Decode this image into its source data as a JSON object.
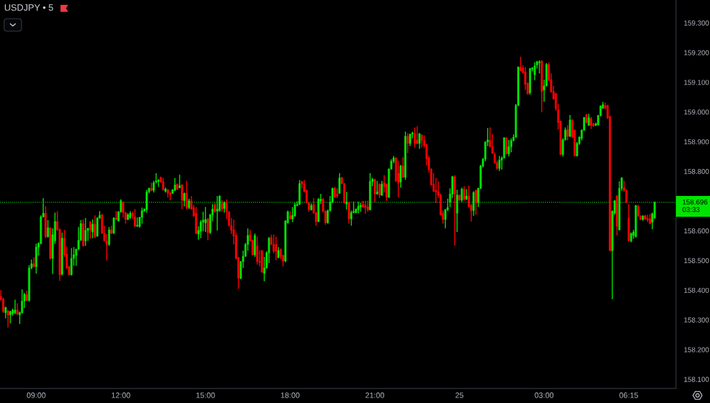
{
  "chart_data": {
    "type": "candlestick",
    "title": "USDJPY • 5",
    "categories": [
      null,
      null,
      null,
      null,
      null,
      null,
      null,
      null,
      null,
      null,
      null,
      null,
      null,
      null,
      null,
      "09:00",
      null,
      null,
      null,
      null,
      null,
      null,
      null,
      null,
      null,
      null,
      null,
      null,
      null,
      null,
      null,
      null,
      null,
      null,
      null,
      null,
      null,
      null,
      null,
      null,
      null,
      null,
      null,
      null,
      null,
      null,
      null,
      null,
      null,
      null,
      null,
      "12:00",
      null,
      null,
      null,
      null,
      null,
      null,
      null,
      null,
      null,
      null,
      null,
      null,
      null,
      null,
      null,
      null,
      null,
      null,
      null,
      null,
      null,
      null,
      null,
      null,
      null,
      null,
      null,
      null,
      null,
      null,
      null,
      null,
      null,
      null,
      null,
      "15:00",
      null,
      null,
      null,
      null,
      null,
      null,
      null,
      null,
      null,
      null,
      null,
      null,
      null,
      null,
      null,
      null,
      null,
      null,
      null,
      null,
      null,
      null,
      null,
      null,
      null,
      null,
      null,
      null,
      null,
      null,
      null,
      null,
      null,
      null,
      null,
      "18:00",
      null,
      null,
      null,
      null,
      null,
      null,
      null,
      null,
      null,
      null,
      null,
      null,
      null,
      null,
      null,
      null,
      null,
      null,
      null,
      null,
      null,
      null,
      null,
      null,
      null,
      null,
      null,
      null,
      null,
      null,
      null,
      null,
      null,
      null,
      null,
      "21:00",
      null,
      null,
      null,
      null,
      null,
      null,
      null,
      null,
      null,
      null,
      null,
      null,
      null,
      null,
      null,
      null,
      null,
      null,
      null,
      null,
      null,
      null,
      null,
      null,
      null,
      null,
      null,
      null,
      null,
      null,
      null,
      null,
      null,
      null,
      null,
      "25",
      null,
      null,
      null,
      null,
      null,
      null,
      null,
      null,
      null,
      null,
      null,
      null,
      null,
      null,
      null,
      null,
      null,
      null,
      null,
      null,
      null,
      null,
      null,
      null,
      null,
      null,
      null,
      null,
      null,
      null,
      null,
      null,
      null,
      null,
      null,
      "03:00",
      null,
      null,
      null,
      null,
      null,
      null,
      null,
      null,
      null,
      null,
      null,
      null,
      null,
      null,
      null,
      null,
      null,
      null,
      null,
      null,
      null,
      null,
      null,
      null,
      null,
      null,
      null,
      null,
      null,
      null,
      null,
      null,
      null,
      null,
      null,
      "06:15",
      null,
      null,
      null,
      null,
      null,
      null,
      null,
      null,
      null,
      null,
      null
    ],
    "ohlc": [
      [
        158.379,
        158.4,
        158.365,
        158.368
      ],
      [
        158.37,
        158.375,
        158.323,
        158.328
      ],
      [
        158.324,
        158.344,
        158.305,
        158.342
      ],
      [
        158.33,
        158.333,
        158.274,
        158.316
      ],
      [
        158.317,
        158.33,
        158.288,
        158.328
      ],
      [
        158.321,
        158.338,
        158.314,
        158.333
      ],
      [
        158.324,
        158.368,
        158.319,
        158.333
      ],
      [
        158.333,
        158.356,
        158.317,
        158.319
      ],
      [
        158.317,
        158.328,
        158.286,
        158.324
      ],
      [
        158.324,
        158.403,
        158.321,
        158.363
      ],
      [
        158.363,
        158.391,
        158.34,
        158.386
      ],
      [
        158.384,
        158.398,
        158.363,
        158.365
      ],
      [
        158.365,
        158.484,
        158.361,
        158.475
      ],
      [
        158.475,
        158.503,
        158.47,
        158.489
      ],
      [
        158.489,
        158.51,
        158.477,
        158.479
      ],
      [
        158.479,
        158.557,
        158.456,
        158.545
      ],
      [
        158.545,
        158.561,
        158.517,
        158.557
      ],
      [
        158.557,
        158.652,
        158.554,
        158.647
      ],
      [
        158.647,
        158.71,
        158.645,
        158.659
      ],
      [
        158.659,
        158.682,
        158.575,
        158.58
      ],
      [
        158.58,
        158.636,
        158.577,
        158.61
      ],
      [
        158.61,
        158.612,
        158.503,
        158.507
      ],
      [
        158.507,
        158.608,
        158.454,
        158.587
      ],
      [
        158.566,
        158.661,
        158.556,
        158.631
      ],
      [
        158.631,
        158.666,
        158.6,
        158.603
      ],
      [
        158.605,
        158.608,
        158.431,
        158.452
      ],
      [
        158.454,
        158.594,
        158.449,
        158.575
      ],
      [
        158.575,
        158.603,
        158.512,
        158.519
      ],
      [
        158.521,
        158.547,
        158.472,
        158.475
      ],
      [
        158.479,
        158.482,
        158.449,
        158.452
      ],
      [
        158.452,
        158.542,
        158.449,
        158.507
      ],
      [
        158.507,
        158.545,
        158.482,
        158.519
      ],
      [
        158.517,
        158.54,
        158.482,
        158.538
      ],
      [
        158.538,
        158.613,
        158.535,
        158.568
      ],
      [
        158.568,
        158.636,
        158.566,
        158.624
      ],
      [
        158.624,
        158.638,
        158.547,
        158.549
      ],
      [
        158.566,
        158.643,
        158.549,
        158.601
      ],
      [
        158.601,
        158.61,
        158.566,
        158.608
      ],
      [
        158.629,
        158.633,
        158.573,
        158.603
      ],
      [
        158.596,
        158.638,
        158.575,
        158.622
      ],
      [
        158.622,
        158.652,
        158.575,
        158.58
      ],
      [
        158.582,
        158.645,
        158.58,
        158.643
      ],
      [
        158.643,
        158.666,
        158.64,
        158.652
      ],
      [
        158.654,
        158.656,
        158.589,
        158.592
      ],
      [
        158.592,
        158.617,
        158.564,
        158.566
      ],
      [
        158.566,
        158.589,
        158.5,
        158.554
      ],
      [
        158.554,
        158.613,
        158.549,
        158.603
      ],
      [
        158.603,
        158.617,
        158.589,
        158.592
      ],
      [
        158.592,
        158.645,
        158.589,
        158.643
      ],
      [
        158.643,
        158.666,
        158.636,
        158.638
      ],
      [
        158.633,
        158.666,
        158.631,
        158.664
      ],
      [
        158.664,
        158.706,
        158.661,
        158.701
      ],
      [
        158.696,
        158.698,
        158.645,
        158.661
      ],
      [
        158.661,
        158.664,
        158.624,
        158.638
      ],
      [
        158.638,
        158.659,
        158.636,
        158.654
      ],
      [
        158.645,
        158.666,
        158.64,
        158.659
      ],
      [
        158.659,
        158.664,
        158.64,
        158.65
      ],
      [
        158.647,
        158.673,
        158.613,
        158.615
      ],
      [
        158.615,
        158.645,
        158.613,
        158.619
      ],
      [
        158.615,
        158.647,
        158.61,
        158.645
      ],
      [
        158.645,
        158.678,
        158.624,
        158.668
      ],
      [
        158.666,
        158.675,
        158.664,
        158.673
      ],
      [
        158.671,
        158.738,
        158.661,
        158.731
      ],
      [
        158.731,
        158.745,
        158.726,
        158.743
      ],
      [
        158.743,
        158.762,
        158.734,
        158.736
      ],
      [
        158.736,
        158.768,
        158.729,
        158.762
      ],
      [
        158.764,
        158.794,
        158.759,
        158.768
      ],
      [
        158.766,
        158.773,
        158.748,
        158.771
      ],
      [
        158.78,
        158.782,
        158.762,
        158.764
      ],
      [
        158.766,
        158.778,
        158.736,
        158.738
      ],
      [
        158.733,
        158.745,
        158.729,
        158.74
      ],
      [
        158.738,
        158.74,
        158.712,
        158.726
      ],
      [
        158.726,
        158.731,
        158.703,
        158.722
      ],
      [
        158.726,
        158.74,
        158.724,
        158.738
      ],
      [
        158.736,
        158.778,
        158.734,
        158.754
      ],
      [
        158.757,
        158.759,
        158.738,
        158.74
      ],
      [
        158.745,
        158.789,
        158.743,
        158.752
      ],
      [
        158.754,
        158.757,
        158.673,
        158.703
      ],
      [
        158.701,
        158.729,
        158.682,
        158.726
      ],
      [
        158.726,
        158.768,
        158.673,
        158.678
      ],
      [
        158.678,
        158.708,
        158.673,
        158.701
      ],
      [
        158.701,
        158.717,
        158.671,
        158.673
      ],
      [
        158.678,
        158.687,
        158.647,
        158.65
      ],
      [
        158.659,
        158.68,
        158.589,
        158.591
      ],
      [
        158.589,
        158.615,
        158.57,
        158.601
      ],
      [
        158.598,
        158.636,
        158.575,
        158.629
      ],
      [
        158.629,
        158.664,
        158.598,
        158.636
      ],
      [
        158.627,
        158.68,
        158.596,
        158.638
      ],
      [
        158.64,
        158.642,
        158.568,
        158.594
      ],
      [
        158.594,
        158.657,
        158.589,
        158.654
      ],
      [
        158.654,
        158.69,
        158.633,
        158.673
      ],
      [
        158.687,
        158.694,
        158.661,
        158.664
      ],
      [
        158.666,
        158.717,
        158.601,
        158.673
      ],
      [
        158.668,
        158.719,
        158.664,
        158.717
      ],
      [
        158.692,
        158.703,
        158.664,
        158.673
      ],
      [
        158.675,
        158.699,
        158.661,
        158.694
      ],
      [
        158.696,
        158.706,
        158.64,
        158.664
      ],
      [
        158.664,
        158.666,
        158.615,
        158.617
      ],
      [
        158.617,
        158.643,
        158.589,
        158.601
      ],
      [
        158.603,
        158.638,
        158.554,
        158.582
      ],
      [
        158.584,
        158.594,
        158.503,
        158.507
      ],
      [
        158.51,
        158.512,
        158.405,
        158.44
      ],
      [
        158.44,
        158.498,
        158.437,
        158.496
      ],
      [
        158.496,
        158.533,
        158.475,
        158.514
      ],
      [
        158.514,
        158.559,
        158.512,
        158.554
      ],
      [
        158.554,
        158.608,
        158.533,
        158.584
      ],
      [
        158.587,
        158.603,
        158.563,
        158.566
      ],
      [
        158.568,
        158.57,
        158.517,
        158.519
      ],
      [
        158.519,
        158.591,
        158.512,
        158.584
      ],
      [
        158.549,
        158.58,
        158.486,
        158.496
      ],
      [
        158.498,
        158.535,
        158.48,
        158.494
      ],
      [
        158.533,
        158.535,
        158.459,
        158.461
      ],
      [
        158.456,
        158.512,
        158.43,
        158.475
      ],
      [
        158.475,
        158.531,
        158.472,
        158.526
      ],
      [
        158.526,
        158.579,
        158.491,
        158.575
      ],
      [
        158.577,
        158.587,
        158.552,
        158.554
      ],
      [
        158.554,
        158.587,
        158.524,
        158.531
      ],
      [
        158.554,
        158.58,
        158.501,
        158.531
      ],
      [
        158.51,
        158.545,
        158.507,
        158.533
      ],
      [
        158.538,
        158.54,
        158.505,
        158.514
      ],
      [
        158.517,
        158.519,
        158.48,
        158.498
      ],
      [
        158.498,
        158.636,
        158.494,
        158.633
      ],
      [
        158.627,
        158.668,
        158.624,
        158.664
      ],
      [
        158.65,
        158.666,
        158.638,
        158.64
      ],
      [
        158.64,
        158.68,
        158.629,
        158.652
      ],
      [
        158.65,
        158.694,
        158.647,
        158.687
      ],
      [
        158.685,
        158.699,
        158.683,
        158.689
      ],
      [
        158.689,
        158.771,
        158.687,
        158.759
      ],
      [
        158.766,
        158.768,
        158.743,
        158.757
      ],
      [
        158.757,
        158.771,
        158.729,
        158.733
      ],
      [
        158.736,
        158.738,
        158.692,
        158.694
      ],
      [
        158.694,
        158.696,
        158.664,
        158.671
      ],
      [
        158.671,
        158.692,
        158.668,
        158.685
      ],
      [
        158.689,
        158.71,
        158.657,
        158.661
      ],
      [
        158.661,
        158.663,
        158.617,
        158.631
      ],
      [
        158.631,
        158.71,
        158.629,
        158.706
      ],
      [
        158.701,
        158.724,
        158.69,
        158.706
      ],
      [
        158.706,
        158.71,
        158.661,
        158.666
      ],
      [
        158.666,
        158.668,
        158.62,
        158.627
      ],
      [
        158.627,
        158.671,
        158.624,
        158.668
      ],
      [
        158.668,
        158.717,
        158.664,
        158.696
      ],
      [
        158.696,
        158.745,
        158.694,
        158.743
      ],
      [
        158.743,
        158.748,
        158.711,
        158.713
      ],
      [
        158.724,
        158.743,
        158.71,
        158.717
      ],
      [
        158.726,
        158.794,
        158.724,
        158.778
      ],
      [
        158.778,
        158.782,
        158.757,
        158.759
      ],
      [
        158.759,
        158.761,
        158.692,
        158.694
      ],
      [
        158.69,
        158.731,
        158.671,
        158.696
      ],
      [
        158.694,
        158.698,
        158.624,
        158.64
      ],
      [
        158.64,
        158.668,
        158.617,
        158.661
      ],
      [
        158.661,
        158.698,
        158.659,
        158.666
      ],
      [
        158.661,
        158.675,
        158.659,
        158.673
      ],
      [
        158.671,
        158.698,
        158.659,
        158.682
      ],
      [
        158.68,
        158.694,
        158.664,
        158.685
      ],
      [
        158.689,
        158.701,
        158.678,
        158.68
      ],
      [
        158.687,
        158.701,
        158.657,
        158.678
      ],
      [
        158.68,
        158.701,
        158.664,
        158.671
      ],
      [
        158.671,
        158.794,
        158.668,
        158.766
      ],
      [
        158.766,
        158.778,
        158.75,
        158.773
      ],
      [
        158.773,
        158.775,
        158.696,
        158.724
      ],
      [
        158.724,
        158.768,
        158.722,
        158.731
      ],
      [
        158.757,
        158.759,
        158.71,
        158.72
      ],
      [
        158.72,
        158.768,
        158.717,
        158.757
      ],
      [
        158.761,
        158.787,
        158.729,
        158.748
      ],
      [
        158.757,
        158.759,
        158.701,
        158.713
      ],
      [
        158.713,
        158.81,
        158.71,
        158.808
      ],
      [
        158.808,
        158.841,
        158.806,
        158.834
      ],
      [
        158.834,
        158.852,
        158.827,
        158.845
      ],
      [
        158.845,
        158.848,
        158.764,
        158.768
      ],
      [
        158.794,
        158.836,
        158.713,
        158.761
      ],
      [
        158.764,
        158.822,
        158.745,
        158.818
      ],
      [
        158.818,
        158.848,
        158.778,
        158.78
      ],
      [
        158.78,
        158.934,
        158.771,
        158.918
      ],
      [
        158.918,
        158.929,
        158.862,
        158.894
      ],
      [
        158.894,
        158.927,
        158.885,
        158.925
      ],
      [
        158.925,
        158.934,
        158.911,
        158.929
      ],
      [
        158.927,
        158.948,
        158.88,
        158.894
      ],
      [
        158.906,
        158.952,
        158.892,
        158.894
      ],
      [
        158.894,
        158.929,
        158.876,
        158.927
      ],
      [
        158.922,
        158.924,
        158.88,
        158.904
      ],
      [
        158.904,
        158.922,
        158.88,
        158.887
      ],
      [
        158.89,
        158.892,
        158.82,
        158.843
      ],
      [
        158.845,
        158.852,
        158.796,
        158.806
      ],
      [
        158.808,
        158.81,
        158.752,
        158.754
      ],
      [
        158.757,
        158.794,
        158.731,
        158.733
      ],
      [
        158.736,
        158.778,
        158.694,
        158.731
      ],
      [
        158.731,
        158.766,
        158.71,
        158.72
      ],
      [
        158.72,
        158.726,
        158.652,
        158.654
      ],
      [
        158.659,
        158.668,
        158.624,
        158.638
      ],
      [
        158.638,
        158.673,
        158.608,
        158.671
      ],
      [
        158.671,
        158.708,
        158.666,
        158.678
      ],
      [
        158.696,
        158.743,
        158.68,
        158.724
      ],
      [
        158.724,
        158.785,
        158.71,
        158.782
      ],
      [
        158.782,
        158.787,
        158.55,
        158.724
      ],
      [
        158.659,
        158.738,
        158.596,
        158.72
      ],
      [
        158.72,
        158.722,
        158.701,
        158.703
      ],
      [
        158.703,
        158.745,
        158.697,
        158.74
      ],
      [
        158.74,
        158.75,
        158.701,
        158.706
      ],
      [
        158.706,
        158.74,
        158.704,
        158.717
      ],
      [
        158.717,
        158.752,
        158.678,
        158.682
      ],
      [
        158.685,
        158.69,
        158.631,
        158.668
      ],
      [
        158.668,
        158.733,
        158.65,
        158.729
      ],
      [
        158.736,
        158.738,
        158.654,
        158.694
      ],
      [
        158.694,
        158.745,
        158.68,
        158.743
      ],
      [
        158.743,
        158.822,
        158.74,
        158.818
      ],
      [
        158.818,
        158.845,
        158.813,
        158.841
      ],
      [
        158.841,
        158.901,
        158.834,
        158.899
      ],
      [
        158.899,
        158.946,
        158.885,
        158.906
      ],
      [
        158.904,
        158.948,
        158.881,
        158.883
      ],
      [
        158.883,
        158.925,
        158.859,
        158.861
      ],
      [
        158.857,
        158.864,
        158.827,
        158.829
      ],
      [
        158.829,
        158.836,
        158.806,
        158.81
      ],
      [
        158.81,
        158.852,
        158.801,
        158.838
      ],
      [
        158.838,
        158.85,
        158.806,
        158.845
      ],
      [
        158.845,
        158.915,
        158.843,
        158.913
      ],
      [
        158.913,
        158.915,
        158.857,
        158.859
      ],
      [
        158.859,
        158.906,
        158.85,
        158.883
      ],
      [
        158.883,
        158.911,
        158.864,
        158.904
      ],
      [
        158.904,
        158.925,
        158.901,
        158.915
      ],
      [
        158.915,
        159.027,
        158.913,
        159.022
      ],
      [
        159.022,
        159.153,
        159.02,
        159.151
      ],
      [
        159.151,
        159.186,
        159.137,
        159.139
      ],
      [
        159.148,
        159.158,
        159.13,
        159.132
      ],
      [
        159.135,
        159.151,
        159.074,
        159.093
      ],
      [
        159.097,
        159.099,
        159.058,
        159.062
      ],
      [
        159.065,
        159.148,
        159.058,
        159.146
      ],
      [
        159.144,
        159.151,
        159.137,
        159.148
      ],
      [
        159.125,
        159.167,
        159.107,
        159.155
      ],
      [
        159.158,
        159.172,
        159.146,
        159.169
      ],
      [
        159.165,
        159.174,
        159.13,
        159.169
      ],
      [
        159.172,
        159.174,
        158.999,
        159.069
      ],
      [
        159.074,
        159.109,
        159.034,
        159.088
      ],
      [
        159.088,
        159.165,
        159.086,
        159.16
      ],
      [
        159.16,
        159.167,
        159.104,
        159.109
      ],
      [
        159.109,
        159.13,
        159.065,
        159.067
      ],
      [
        159.069,
        159.088,
        159.041,
        159.044
      ],
      [
        159.062,
        159.064,
        159.004,
        159.011
      ],
      [
        159.008,
        159.027,
        158.941,
        158.964
      ],
      [
        158.969,
        158.971,
        158.855,
        158.857
      ],
      [
        158.857,
        158.911,
        158.85,
        158.906
      ],
      [
        158.906,
        158.948,
        158.904,
        158.939
      ],
      [
        158.941,
        158.955,
        158.904,
        158.918
      ],
      [
        158.918,
        158.99,
        158.916,
        158.973
      ],
      [
        158.973,
        158.975,
        158.913,
        158.915
      ],
      [
        158.939,
        158.941,
        158.85,
        158.852
      ],
      [
        158.852,
        158.899,
        158.85,
        158.894
      ],
      [
        158.894,
        158.918,
        158.889,
        158.915
      ],
      [
        158.911,
        158.941,
        158.904,
        158.939
      ],
      [
        158.939,
        158.983,
        158.936,
        158.981
      ],
      [
        158.99,
        158.994,
        158.962,
        158.964
      ],
      [
        158.955,
        158.994,
        158.953,
        158.981
      ],
      [
        158.978,
        158.983,
        158.943,
        158.955
      ],
      [
        158.96,
        158.964,
        158.95,
        158.953
      ],
      [
        158.955,
        158.964,
        158.953,
        158.96
      ],
      [
        158.957,
        158.99,
        158.955,
        158.988
      ],
      [
        158.988,
        159.022,
        158.985,
        159.02
      ],
      [
        159.013,
        159.034,
        159.011,
        159.025
      ],
      [
        159.022,
        159.032,
        159.008,
        159.013
      ],
      [
        159.022,
        159.024,
        158.976,
        158.981
      ],
      [
        158.985,
        158.987,
        158.531,
        158.533
      ],
      [
        158.533,
        158.668,
        158.37,
        158.666
      ],
      [
        158.659,
        158.703,
        158.654,
        158.701
      ],
      [
        158.717,
        158.72,
        158.584,
        158.615
      ],
      [
        158.603,
        158.766,
        158.601,
        158.743
      ],
      [
        158.743,
        158.78,
        158.734,
        158.778
      ],
      [
        158.745,
        158.768,
        158.731,
        158.736
      ],
      [
        158.736,
        158.74,
        158.694,
        158.696
      ],
      [
        158.643,
        158.69,
        158.563,
        158.566
      ],
      [
        158.566,
        158.594,
        158.561,
        158.591
      ],
      [
        158.584,
        158.603,
        158.573,
        158.596
      ],
      [
        158.58,
        158.687,
        158.577,
        158.685
      ],
      [
        158.682,
        158.687,
        158.647,
        158.65
      ],
      [
        158.65,
        158.652,
        158.636,
        158.638
      ],
      [
        158.638,
        158.652,
        158.634,
        158.65
      ],
      [
        158.65,
        158.654,
        158.636,
        158.64
      ],
      [
        158.643,
        158.654,
        158.629,
        158.636
      ],
      [
        158.64,
        158.657,
        158.622,
        158.624
      ],
      [
        158.629,
        158.661,
        158.605,
        158.657
      ],
      [
        158.643,
        158.698,
        158.64,
        158.696
      ]
    ],
    "colors": [
      "#ff0000",
      "#ff0000",
      "#00e600",
      "#ff0000",
      "#00e600",
      "#00e600",
      "#00e600",
      "#ff0000",
      "#00e600",
      "#00e600",
      "#00e600",
      "#ff0000",
      "#00e600",
      "#00e600",
      "#ff0000",
      "#00e600",
      "#00e600",
      "#00e600",
      "#00e600",
      "#ff0000",
      "#00e600",
      "#ff0000",
      "#00e600",
      "#00e600",
      "#ff0000",
      "#ff0000",
      "#00e600",
      "#ff0000",
      "#ff0000",
      "#ff0000",
      "#00e600",
      "#00e600",
      "#00e600",
      "#00e600",
      "#00e600",
      "#ff0000",
      "#00e600",
      "#00e600",
      "#ff0000",
      "#00e600",
      "#ff0000",
      "#00e600",
      "#00e600",
      "#ff0000",
      "#ff0000",
      "#ff0000",
      "#00e600",
      "#ff0000",
      "#00e600",
      "#ff0000",
      "#00e600",
      "#00e600",
      "#ff0000",
      "#ff0000",
      "#00e600",
      "#00e600",
      "#ff0000",
      "#ff0000",
      "#00e600",
      "#00e600",
      "#00e600",
      "#00e600",
      "#00e600",
      "#00e600",
      "#ff0000",
      "#00e600",
      "#00e600",
      "#00e600",
      "#ff0000",
      "#ff0000",
      "#00e600",
      "#ff0000",
      "#ff0000",
      "#00e600",
      "#00e600",
      "#ff0000",
      "#00e600",
      "#ff0000",
      "#00e600",
      "#ff0000",
      "#00e600",
      "#ff0000",
      "#ff0000",
      "#ff0000",
      "#00e600",
      "#00e600",
      "#00e600",
      "#00e600",
      "#ff0000",
      "#00e600",
      "#00e600",
      "#ff0000",
      "#00e600",
      "#00e600",
      "#ff0000",
      "#00e600",
      "#ff0000",
      "#ff0000",
      "#ff0000",
      "#ff0000",
      "#ff0000",
      "#ff0000",
      "#00e600",
      "#00e600",
      "#00e600",
      "#00e600",
      "#ff0000",
      "#ff0000",
      "#00e600",
      "#ff0000",
      "#ff0000",
      "#ff0000",
      "#00e600",
      "#00e600",
      "#00e600",
      "#ff0000",
      "#ff0000",
      "#ff0000",
      "#00e600",
      "#ff0000",
      "#ff0000",
      "#00e600",
      "#00e600",
      "#ff0000",
      "#00e600",
      "#00e600",
      "#00e600",
      "#00e600",
      "#ff0000",
      "#ff0000",
      "#ff0000",
      "#ff0000",
      "#00e600",
      "#ff0000",
      "#ff0000",
      "#00e600",
      "#00e600",
      "#ff0000",
      "#ff0000",
      "#00e600",
      "#00e600",
      "#00e600",
      "#ff0000",
      "#ff0000",
      "#00e600",
      "#ff0000",
      "#ff0000",
      "#00e600",
      "#ff0000",
      "#00e600",
      "#00e600",
      "#00e600",
      "#00e600",
      "#00e600",
      "#ff0000",
      "#ff0000",
      "#ff0000",
      "#00e600",
      "#00e600",
      "#ff0000",
      "#00e600",
      "#ff0000",
      "#00e600",
      "#ff0000",
      "#ff0000",
      "#00e600",
      "#00e600",
      "#00e600",
      "#ff0000",
      "#ff0000",
      "#00e600",
      "#ff0000",
      "#00e600",
      "#ff0000",
      "#00e600",
      "#00e600",
      "#ff0000",
      "#ff0000",
      "#00e600",
      "#ff0000",
      "#ff0000",
      "#ff0000",
      "#ff0000",
      "#ff0000",
      "#ff0000",
      "#ff0000",
      "#ff0000",
      "#ff0000",
      "#ff0000",
      "#00e600",
      "#00e600",
      "#00e600",
      "#00e600",
      "#ff0000",
      "#00e600",
      "#ff0000",
      "#00e600",
      "#ff0000",
      "#00e600",
      "#ff0000",
      "#ff0000",
      "#00e600",
      "#ff0000",
      "#00e600",
      "#00e600",
      "#00e600",
      "#00e600",
      "#00e600",
      "#ff0000",
      "#ff0000",
      "#ff0000",
      "#ff0000",
      "#00e600",
      "#00e600",
      "#00e600",
      "#ff0000",
      "#00e600",
      "#00e600",
      "#00e600",
      "#00e600",
      "#00e600",
      "#ff0000",
      "#ff0000",
      "#ff0000",
      "#ff0000",
      "#00e600",
      "#00e600",
      "#00e600",
      "#00e600",
      "#00e600",
      "#ff0000",
      "#00e600",
      "#00e600",
      "#ff0000",
      "#ff0000",
      "#ff0000",
      "#ff0000",
      "#ff0000",
      "#ff0000",
      "#00e600",
      "#00e600",
      "#ff0000",
      "#00e600",
      "#ff0000",
      "#ff0000",
      "#00e600",
      "#00e600",
      "#00e600",
      "#00e600",
      "#ff0000",
      "#00e600",
      "#ff0000",
      "#ff0000",
      "#00e600",
      "#00e600",
      "#00e600",
      "#00e600",
      "#ff0000",
      "#ff0000",
      "#ff0000",
      "#00e600",
      "#00e600",
      "#ff0000",
      "#00e600",
      "#00e600",
      "#ff0000",
      "#ff0000",
      "#ff0000",
      "#00e600",
      "#00e600",
      "#00e600",
      "#ff0000",
      "#ff0000",
      "#00e600",
      "#ff0000",
      "#ff0000",
      "#ff0000",
      "#00e600",
      "#00e600"
    ],
    "ylim": [
      158.069,
      159.377
    ],
    "yticks": [
      {
        "value": 158.1,
        "label": "158.100"
      },
      {
        "value": 158.2,
        "label": "158.200"
      },
      {
        "value": 158.3,
        "label": "158.300"
      },
      {
        "value": 158.4,
        "label": "158.400"
      },
      {
        "value": 158.5,
        "label": "158.500"
      },
      {
        "value": 158.6,
        "label": "158.600"
      },
      {
        "value": 158.8,
        "label": "158.800"
      },
      {
        "value": 158.9,
        "label": "158.900"
      },
      {
        "value": 159.0,
        "label": "159.000"
      },
      {
        "value": 159.1,
        "label": "159.100"
      },
      {
        "value": 159.2,
        "label": "159.200"
      },
      {
        "value": 159.3,
        "label": "159.300"
      }
    ],
    "ref_lines": [
      {
        "axis": "y",
        "value": 158.696,
        "label": "158.696\n03:33",
        "color": "#00e600",
        "line_style": "dotted"
      }
    ]
  }
}
